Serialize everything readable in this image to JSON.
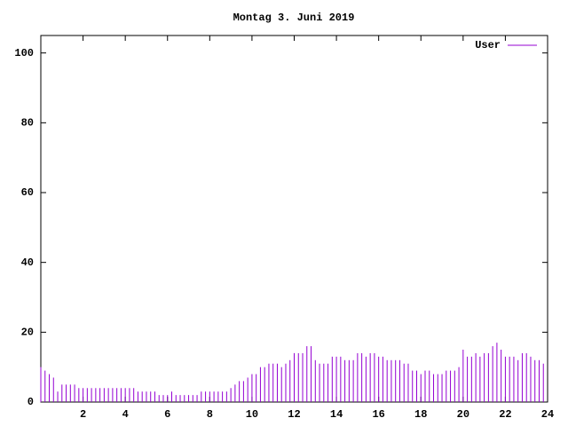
{
  "chart_data": {
    "type": "impulse",
    "title": "Montag 3. Juni 2019",
    "series": [
      {
        "name": "User",
        "color": "#9400d3",
        "x": [
          0,
          0.2,
          0.4,
          0.6,
          0.8,
          1,
          1.2,
          1.4,
          1.6,
          1.8,
          2,
          2.2,
          2.4,
          2.6,
          2.8,
          3,
          3.2,
          3.4,
          3.6,
          3.8,
          4,
          4.2,
          4.4,
          4.6,
          4.8,
          5,
          5.2,
          5.4,
          5.6,
          5.8,
          6,
          6.2,
          6.4,
          6.6,
          6.8,
          7,
          7.2,
          7.4,
          7.6,
          7.8,
          8,
          8.2,
          8.4,
          8.6,
          8.8,
          9,
          9.2,
          9.4,
          9.6,
          9.8,
          10,
          10.2,
          10.4,
          10.6,
          10.8,
          11,
          11.2,
          11.4,
          11.6,
          11.8,
          12,
          12.2,
          12.4,
          12.6,
          12.8,
          13,
          13.2,
          13.4,
          13.6,
          13.8,
          14,
          14.2,
          14.4,
          14.6,
          14.8,
          15,
          15.2,
          15.4,
          15.6,
          15.8,
          16,
          16.2,
          16.4,
          16.6,
          16.8,
          17,
          17.2,
          17.4,
          17.6,
          17.8,
          18,
          18.2,
          18.4,
          18.6,
          18.8,
          19,
          19.2,
          19.4,
          19.6,
          19.8,
          20,
          20.2,
          20.4,
          20.6,
          20.8,
          21,
          21.2,
          21.4,
          21.6,
          21.8,
          22,
          22.2,
          22.4,
          22.6,
          22.8,
          23,
          23.2,
          23.4,
          23.6,
          23.8
        ],
        "values": [
          10,
          9,
          8,
          7,
          3,
          5,
          5,
          5,
          5,
          4,
          4,
          4,
          4,
          4,
          4,
          4,
          4,
          4,
          4,
          4,
          4,
          4,
          4,
          3,
          3,
          3,
          3,
          3,
          2,
          2,
          2,
          3,
          2,
          2,
          2,
          2,
          2,
          2,
          3,
          3,
          3,
          3,
          3,
          3,
          3,
          4,
          5,
          6,
          6,
          7,
          8,
          8,
          10,
          10,
          11,
          11,
          11,
          10,
          11,
          12,
          14,
          14,
          14,
          16,
          16,
          12,
          11,
          11,
          11,
          13,
          13,
          13,
          12,
          12,
          12,
          14,
          14,
          13,
          14,
          14,
          13,
          13,
          12,
          12,
          12,
          12,
          11,
          11,
          9,
          9,
          8,
          9,
          9,
          8,
          8,
          8,
          9,
          9,
          9,
          10,
          15,
          13,
          13,
          14,
          13,
          14,
          14,
          16,
          17,
          15,
          13,
          13,
          13,
          12,
          14,
          14,
          13,
          12,
          12,
          11
        ]
      }
    ],
    "xlim": [
      0,
      24
    ],
    "xticks": [
      2,
      4,
      6,
      8,
      10,
      12,
      14,
      16,
      18,
      20,
      22,
      24
    ],
    "ylim": [
      0,
      105
    ],
    "yticks": [
      0,
      20,
      40,
      60,
      80,
      100
    ],
    "legend": "top-right"
  }
}
